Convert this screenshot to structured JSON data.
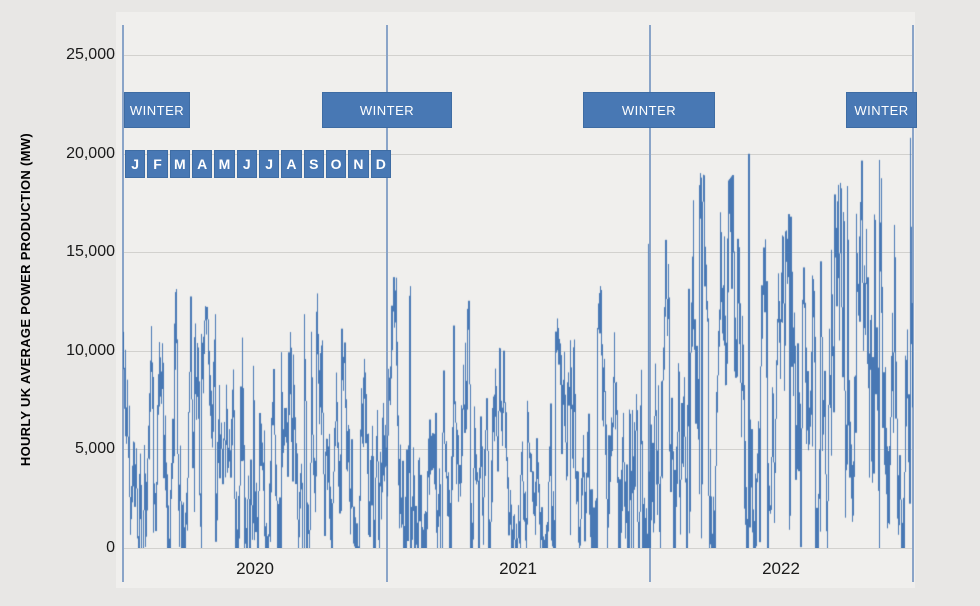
{
  "chart_data": {
    "type": "line",
    "title": "",
    "xlabel": "",
    "ylabel": "HOURLY UK AVERAGE POWER PRODUCTION (MW)",
    "unit": "MW",
    "granularity": "hourly",
    "x_range": {
      "start": "2020-01",
      "end": "2022-12"
    },
    "ylim": [
      0,
      26500
    ],
    "grid": "horizontal, every 5000 MW",
    "legend": "none",
    "ytick_labels": [
      "25,000",
      "20,000",
      "15,000",
      "10,000",
      "5,000",
      "0"
    ],
    "ytick_values": [
      25000,
      20000,
      15000,
      10000,
      5000,
      0
    ],
    "years": [
      "2020",
      "2021",
      "2022"
    ],
    "month_strip": [
      "J",
      "F",
      "M",
      "A",
      "M",
      "J",
      "J",
      "A",
      "S",
      "O",
      "N",
      "D"
    ],
    "winter_badges": [
      {
        "label": "WINTER",
        "from": "2020-01",
        "to": "2020-03"
      },
      {
        "label": "WINTER",
        "from": "2020-10",
        "to": "2021-03"
      },
      {
        "label": "WINTER",
        "from": "2021-10",
        "to": "2022-03"
      },
      {
        "label": "WINTER",
        "from": "2022-10",
        "to": "2022-12"
      }
    ],
    "series": [
      {
        "name": "Hourly UK average power production",
        "monthly_max_envelope_mw": {
          "2020": [
            13700,
            13600,
            13100,
            12500,
            11600,
            11200,
            10800,
            11200,
            13200,
            12400,
            12600,
            13900
          ],
          "2021": [
            13700,
            13000,
            13500,
            12000,
            14200,
            9200,
            7500,
            11400,
            12200,
            13100,
            13800,
            17300
          ],
          "2022": [
            19600,
            19500,
            18900,
            18500,
            20000,
            17100,
            17500,
            13500,
            18300,
            19400,
            21000,
            20800
          ]
        },
        "monthly_min_mw": 0,
        "observed_extremes_mw": {
          "overall_max": 21000,
          "overall_min": 0,
          "summer_2021_lull_max": 7500,
          "winter_2022_peak": 21000
        }
      }
    ],
    "colors": {
      "series": "#4878b4",
      "badge_fill": "#4878b4",
      "badge_border": "#3e6ca3",
      "year_separator": "#8aa4c8",
      "gridline": "#d2d1ce",
      "plot_background": "#f0efed",
      "page_background": "#e8e7e5",
      "text": "#1a1a1a",
      "badge_text": "#ffffff"
    }
  }
}
